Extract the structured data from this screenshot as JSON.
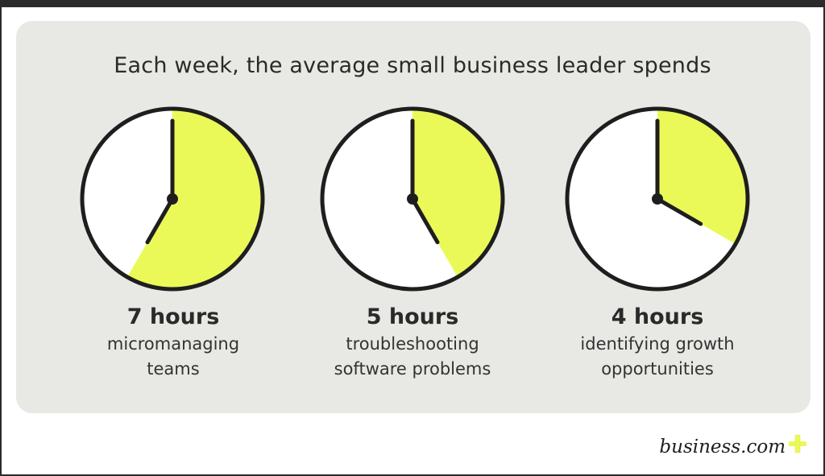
{
  "headline": "Each week, the average small business leader spends",
  "colors": {
    "accent": "#eaf958",
    "clock_face": "#ffffff",
    "clock_outline": "#1e1e1e",
    "card_background": "#e8e9e5"
  },
  "stats": [
    {
      "hours_label": "7 hours",
      "hours": 7,
      "description_lines": [
        "micromanaging",
        "teams"
      ]
    },
    {
      "hours_label": "5 hours",
      "hours": 5,
      "description_lines": [
        "troubleshooting",
        "software problems"
      ]
    },
    {
      "hours_label": "4 hours",
      "hours": 4,
      "description_lines": [
        "identifying growth",
        "opportunities"
      ]
    }
  ],
  "logo": {
    "text": "business.com",
    "icon": "plus-icon"
  }
}
